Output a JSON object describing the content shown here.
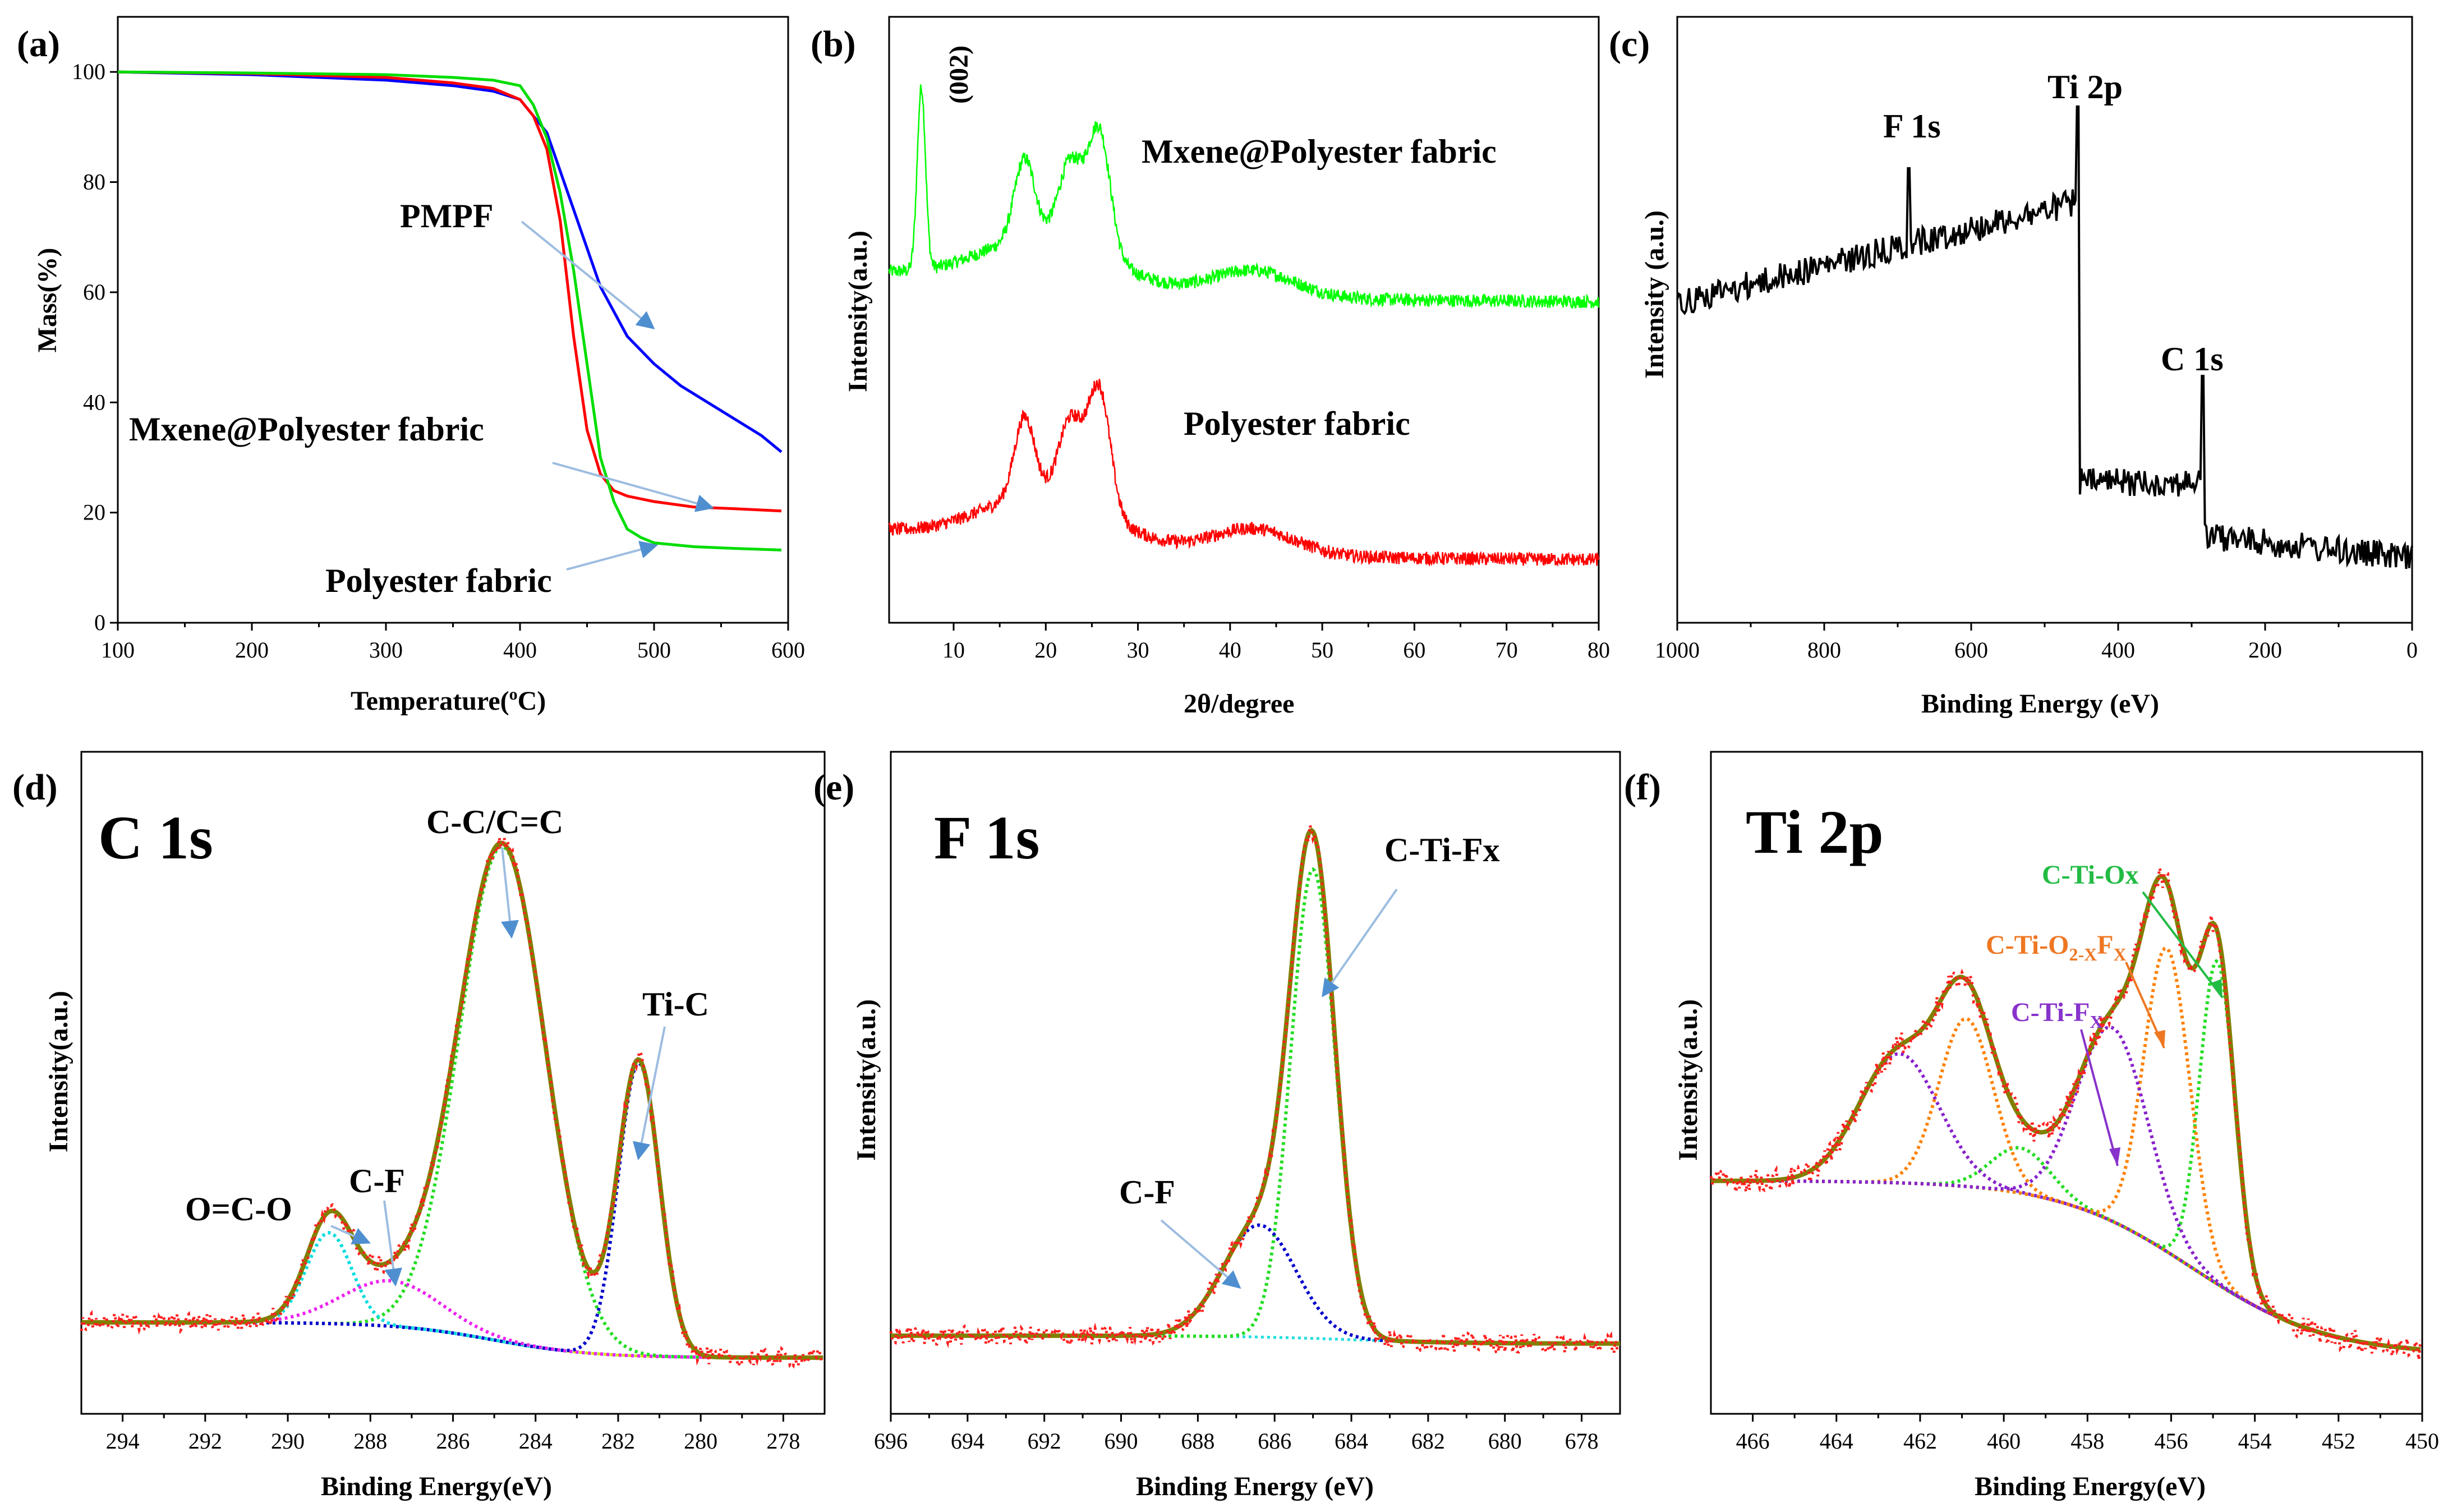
{
  "figure": {
    "panels": {
      "a": {
        "panel_label": "(a)",
        "xlabel": "Temperature(",
        "xlabel_sup": "o",
        "xlabel_tail": "C)",
        "ylabel": "Mass(%)",
        "xticks": [
          "100",
          "200",
          "300",
          "400",
          "500",
          "600"
        ],
        "yticks": [
          "0",
          "20",
          "40",
          "60",
          "80",
          "100"
        ],
        "annotations": [
          "PMPF",
          "Mxene@Polyester fabric",
          "Polyester fabric"
        ]
      },
      "b": {
        "panel_label": "(b)",
        "xlabel": "2θ/degree",
        "ylabel": "Intensity(a.u.)",
        "xticks": [
          "10",
          "20",
          "30",
          "40",
          "50",
          "60",
          "70",
          "80"
        ],
        "peak_label": "(002)",
        "annotations": [
          "Mxene@Polyester fabric",
          "Polyester fabric"
        ]
      },
      "c": {
        "panel_label": "(c)",
        "xlabel": "Binding Energy (eV)",
        "ylabel": "Intensity (a.u.)",
        "xticks": [
          "1000",
          "800",
          "600",
          "400",
          "200",
          "0"
        ],
        "annotations": [
          "F 1s",
          "Ti 2p",
          "C 1s"
        ]
      },
      "d": {
        "panel_label": "(d)",
        "title": "C 1s",
        "xlabel": "Binding Energy(eV)",
        "ylabel": "Intensity(a.u.)",
        "xticks": [
          "294",
          "292",
          "290",
          "288",
          "286",
          "284",
          "282",
          "280",
          "278"
        ],
        "annotations": [
          "C-C/C=C",
          "Ti-C",
          "O=C-O",
          "C-F"
        ]
      },
      "e": {
        "panel_label": "(e)",
        "title": "F 1s",
        "xlabel": "Binding Energy (eV)",
        "ylabel": "Intensity(a.u.)",
        "xticks": [
          "696",
          "694",
          "692",
          "690",
          "688",
          "686",
          "684",
          "682",
          "680",
          "678"
        ],
        "annotations": [
          "C-Ti-Fx",
          "C-F"
        ]
      },
      "f": {
        "panel_label": "(f)",
        "title": "Ti 2p",
        "xlabel": "Binding Energy(eV)",
        "ylabel": "Intensity(a.u.)",
        "xticks": [
          "466",
          "464",
          "462",
          "460",
          "458",
          "456",
          "454",
          "452",
          "450"
        ],
        "annotations": [
          "C-Ti-Ox",
          "C-Ti-O",
          "2-X",
          "F",
          "X",
          "C-Ti-F",
          "X"
        ]
      }
    }
  },
  "chart_data": [
    {
      "type": "line",
      "panel": "a",
      "xlabel": "Temperature(oC)",
      "ylabel": "Mass(%)",
      "xlim": [
        100,
        600
      ],
      "ylim": [
        0,
        110
      ],
      "series": [
        {
          "name": "PMPF",
          "color": "#0000ff",
          "x": [
            100,
            200,
            300,
            350,
            380,
            400,
            420,
            440,
            460,
            480,
            500,
            520,
            540,
            560,
            580,
            595
          ],
          "y": [
            100,
            99.5,
            98.5,
            97.5,
            96.5,
            95,
            89,
            75,
            61,
            52,
            47,
            43,
            40,
            37,
            34,
            31
          ]
        },
        {
          "name": "Mxene@Polyester fabric",
          "color": "#ff0000",
          "x": [
            100,
            200,
            300,
            350,
            380,
            400,
            410,
            420,
            430,
            440,
            450,
            460,
            470,
            480,
            500,
            530,
            560,
            595
          ],
          "y": [
            100,
            99.7,
            99,
            98,
            97,
            95,
            92,
            86,
            73,
            52,
            35,
            27,
            24,
            23,
            22,
            21,
            20.7,
            20.3
          ]
        },
        {
          "name": "Polyester fabric",
          "color": "#00dd00",
          "x": [
            100,
            200,
            300,
            350,
            380,
            400,
            410,
            420,
            430,
            440,
            450,
            460,
            470,
            480,
            490,
            500,
            530,
            560,
            595
          ],
          "y": [
            100,
            99.8,
            99.5,
            99,
            98.5,
            97.5,
            94,
            88,
            78,
            64,
            47,
            30,
            22,
            17,
            15.5,
            14.5,
            13.8,
            13.5,
            13.2
          ]
        }
      ]
    },
    {
      "type": "line",
      "panel": "b",
      "xlabel": "2θ/degree",
      "ylabel": "Intensity(a.u.)",
      "xlim": [
        3,
        80
      ],
      "series": [
        {
          "name": "Mxene@Polyester fabric",
          "color": "#00ff00",
          "peaks_2theta": [
            6.5,
            17.8,
            22.7,
            25.8,
            42.5
          ]
        },
        {
          "name": "Polyester fabric",
          "color": "#ff0000",
          "peaks_2theta": [
            17.6,
            22.7,
            25.8,
            42.5
          ]
        }
      ]
    },
    {
      "type": "line",
      "panel": "c",
      "xlabel": "Binding Energy (eV)",
      "ylabel": "Intensity (a.u.)",
      "xlim": [
        1000,
        0
      ],
      "series": [
        {
          "name": "XPS survey",
          "color": "#000000",
          "peaks_eV": {
            "F 1s": 685,
            "Ti 2p": 455,
            "C 1s": 285
          }
        }
      ]
    },
    {
      "type": "line",
      "panel": "d",
      "xlabel": "Binding Energy(eV)",
      "ylabel": "Intensity(a.u.)",
      "xlim": [
        295,
        277
      ],
      "components": [
        {
          "name": "C-C/C=C",
          "color": "#22dd22",
          "center": 284.8
        },
        {
          "name": "Ti-C",
          "color": "#0000cc",
          "center": 281.5
        },
        {
          "name": "O=C-O",
          "color": "#00dddd",
          "center": 289.0
        },
        {
          "name": "C-F",
          "color": "#ee22ee",
          "center": 287.5
        },
        {
          "name": "background",
          "color": "#dddd00"
        },
        {
          "name": "fit",
          "color": "#808000"
        },
        {
          "name": "raw",
          "color": "#ff0000"
        }
      ]
    },
    {
      "type": "line",
      "panel": "e",
      "xlabel": "Binding Energy (eV)",
      "ylabel": "Intensity(a.u.)",
      "xlim": [
        696,
        677
      ],
      "components": [
        {
          "name": "C-Ti-Fx",
          "color": "#22dd22",
          "center": 685.0
        },
        {
          "name": "C-F",
          "color": "#0000cc",
          "center": 686.4
        },
        {
          "name": "background",
          "color": "#22dddd"
        },
        {
          "name": "fit",
          "color": "#808000"
        },
        {
          "name": "raw",
          "color": "#ff0000"
        }
      ]
    },
    {
      "type": "line",
      "panel": "f",
      "xlabel": "Binding Energy(eV)",
      "ylabel": "Intensity(a.u.)",
      "xlim": [
        467,
        450
      ],
      "components": [
        {
          "name": "C-Ti-Ox",
          "color": "#22dd22",
          "centers": [
            454.9,
            459.6
          ]
        },
        {
          "name": "C-Ti-O2-XFX",
          "color": "#ff8000",
          "centers": [
            456.1,
            460.9
          ]
        },
        {
          "name": "C-Ti-FX",
          "color": "#8822cc",
          "centers": [
            457.4,
            462.5
          ]
        },
        {
          "name": "fit",
          "color": "#808000"
        },
        {
          "name": "background",
          "color": "#800080"
        },
        {
          "name": "raw",
          "color": "#ff0000"
        }
      ]
    }
  ]
}
